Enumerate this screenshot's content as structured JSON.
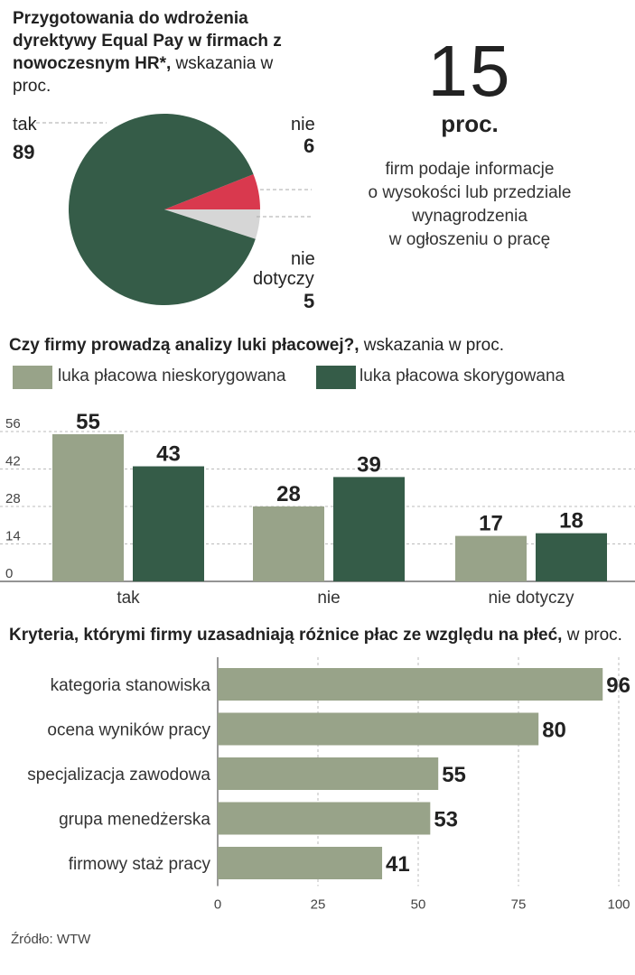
{
  "colors": {
    "dark_green": "#355c48",
    "light_green": "#98a389",
    "red": "#d9394e",
    "light_gray": "#d6d6d6"
  },
  "pie_section": {
    "title_bold": "Przygotowania do wdrożenia dyrektywy Equal Pay w firmach z nowoczesnym HR*,",
    "title_normal": " wskazania w proc.",
    "labels": {
      "tak": "tak",
      "tak_value": "89",
      "nie": "nie",
      "nie_value": "6",
      "nie_dotyczy_1": "nie",
      "nie_dotyczy_2": "dotyczy",
      "nie_dotyczy_value": "5"
    }
  },
  "stat": {
    "number": "15",
    "unit": "proc.",
    "desc": [
      "firm podaje informacje",
      "o wysokości lub przedziale",
      "wynagrodzenia",
      "w ogłoszeniu o pracę"
    ]
  },
  "bar_section": {
    "title_bold": "Czy firmy prowadzą analizy luki płacowej?,",
    "title_normal": " wskazania w proc.",
    "legend": [
      "luka płacowa nieskorygowana",
      "luka płacowa skorygowana"
    ]
  },
  "hbar_section": {
    "title_bold": "Kryteria, którymi firmy uzasadniają różnice płac ze względu na płeć,",
    "title_normal": " w proc."
  },
  "source": "Źródło: WTW",
  "chart_data": [
    {
      "type": "pie",
      "categories": [
        "tak",
        "nie",
        "nie dotyczy"
      ],
      "values": [
        89,
        6,
        5
      ]
    },
    {
      "type": "bar",
      "categories": [
        "tak",
        "nie",
        "nie dotyczy"
      ],
      "series": [
        {
          "name": "luka płacowa nieskorygowana",
          "values": [
            55,
            28,
            17
          ]
        },
        {
          "name": "luka płacowa skorygowana",
          "values": [
            43,
            39,
            18
          ]
        }
      ],
      "yticks": [
        0,
        14,
        28,
        42,
        56
      ],
      "ylim": [
        0,
        56
      ]
    },
    {
      "type": "bar",
      "orientation": "horizontal",
      "categories": [
        "kategoria stanowiska",
        "ocena wyników pracy",
        "specjalizacja zawodowa",
        "grupa menedżerska",
        "firmowy staż pracy"
      ],
      "values": [
        96,
        80,
        55,
        53,
        41
      ],
      "xticks": [
        0,
        25,
        50,
        75,
        100
      ],
      "xlim": [
        0,
        100
      ]
    }
  ]
}
